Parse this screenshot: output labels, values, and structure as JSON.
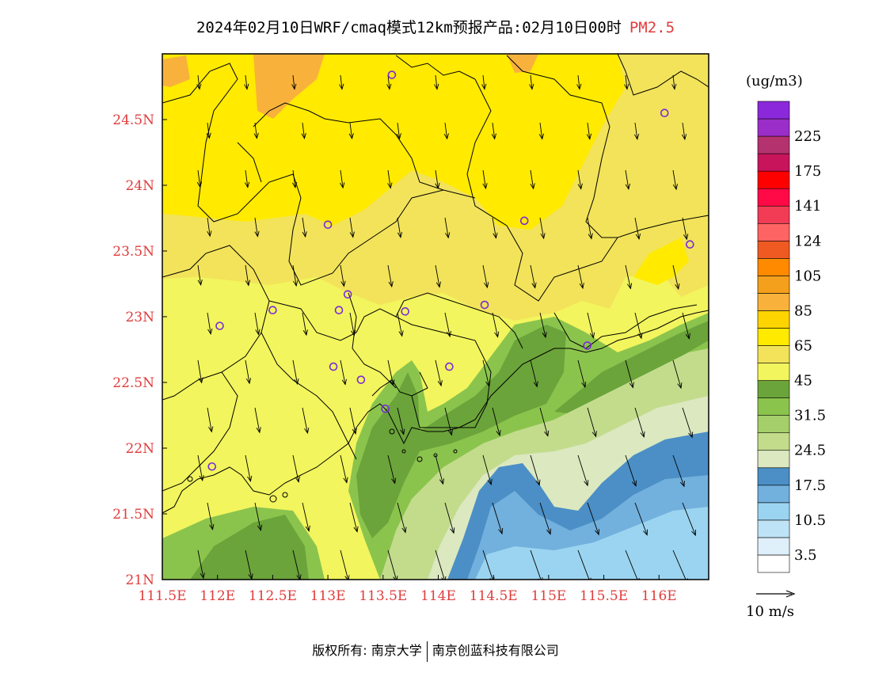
{
  "title": {
    "main": "2024年02月10日WRF/cmaq模式12km预报产品:02月10日00时",
    "species": "PM2.5"
  },
  "axes": {
    "x_ticks": [
      "111.5E",
      "112E",
      "112.5E",
      "113E",
      "113.5E",
      "114E",
      "114.5E",
      "115E",
      "115.5E",
      "116E"
    ],
    "y_ticks": [
      "21N",
      "21.5N",
      "22N",
      "22.5N",
      "23N",
      "23.5N",
      "24N",
      "24.5N"
    ],
    "lon_range": [
      111.5,
      116.45
    ],
    "lat_range": [
      21.0,
      25.0
    ]
  },
  "colorbar": {
    "unit": "(ug/m3)",
    "colors": [
      "#ffffff",
      "#dff0fb",
      "#bfe3f6",
      "#9bd4f0",
      "#72b0dd",
      "#4b8fc6",
      "#dce8c0",
      "#c3dc8c",
      "#a5cf6a",
      "#8bc44d",
      "#6ba43a",
      "#f2f55d",
      "#f2e35a",
      "#ffea00",
      "#fdd400",
      "#f8b23c",
      "#f4a01c",
      "#ff8a00",
      "#ef5a23",
      "#ff6464",
      "#f23c55",
      "#ff0a46",
      "#ff0000",
      "#c8145a",
      "#b4326e",
      "#9b2dc8",
      "#8c28dc"
    ],
    "labels": [
      "3.5",
      "10.5",
      "17.5",
      "24.5",
      "31.5",
      "45",
      "65",
      "85",
      "105",
      "124",
      "141",
      "175",
      "225"
    ]
  },
  "wind_scale": {
    "label": "10 m/s"
  },
  "stations": [
    {
      "lon": 113.58,
      "lat": 24.84
    },
    {
      "lon": 116.05,
      "lat": 24.55
    },
    {
      "lon": 113.0,
      "lat": 23.7
    },
    {
      "lon": 114.78,
      "lat": 23.73
    },
    {
      "lon": 116.28,
      "lat": 23.55
    },
    {
      "lon": 113.18,
      "lat": 23.17
    },
    {
      "lon": 112.5,
      "lat": 23.05
    },
    {
      "lon": 113.1,
      "lat": 23.05
    },
    {
      "lon": 113.7,
      "lat": 23.04
    },
    {
      "lon": 114.42,
      "lat": 23.09
    },
    {
      "lon": 112.02,
      "lat": 22.93
    },
    {
      "lon": 115.35,
      "lat": 22.78
    },
    {
      "lon": 113.05,
      "lat": 22.62
    },
    {
      "lon": 113.3,
      "lat": 22.52
    },
    {
      "lon": 114.1,
      "lat": 22.62
    },
    {
      "lon": 113.52,
      "lat": 22.3
    },
    {
      "lon": 111.95,
      "lat": 21.86
    }
  ],
  "colors": {
    "tick_label": "#e03c3c",
    "station": "#7a2bd6"
  },
  "footer": {
    "left": "版权所有: 南京大学",
    "right": "南京创蓝科技有限公司"
  }
}
